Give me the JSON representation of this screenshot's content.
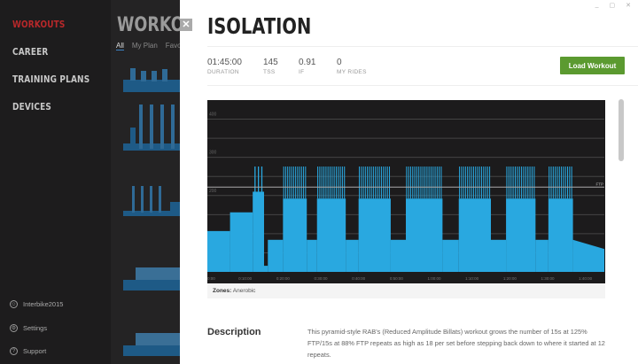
{
  "sidebar": {
    "items": [
      {
        "label": "WORKOUTS",
        "active": true
      },
      {
        "label": "CAREER"
      },
      {
        "label": "TRAINING PLANS"
      },
      {
        "label": "DEVICES"
      }
    ],
    "footer": [
      {
        "icon": "user-icon",
        "label": "Interbike2015"
      },
      {
        "icon": "gear-icon",
        "label": "Settings"
      },
      {
        "icon": "help-icon",
        "label": "Support"
      }
    ]
  },
  "background": {
    "title": "WORKOUTS",
    "tabs": [
      "All",
      "My Plan",
      "Favorites"
    ]
  },
  "modal": {
    "close": "✕",
    "window_controls": [
      "_",
      "▢",
      "✕"
    ],
    "title": "ISOLATION",
    "stats": [
      {
        "value": "01:45:00",
        "label": "DURATION"
      },
      {
        "value": "145",
        "label": "TSS"
      },
      {
        "value": "0.91",
        "label": "IF"
      },
      {
        "value": "0",
        "label": "MY RIDES"
      }
    ],
    "load_button": "Load Workout",
    "zones_label": "Zones:",
    "zones_value": "Anerobic",
    "description_heading": "Description",
    "description": "This pyramid-style RAB's (Reduced Amplitude Billats) workout grows the number of 15s at 125% FTP/15s at 88% FTP repeats as high as 18 per set before stepping back down to where it started at 12 repeats."
  },
  "colors": {
    "accent": "#b8282a",
    "button": "#5b9a30",
    "bar": "#29a8e0"
  },
  "chart_data": {
    "type": "area",
    "ylim": [
      0,
      450
    ],
    "xlim_minutes": [
      0,
      105
    ],
    "ftp": 222,
    "ftp_label": "FTP",
    "y_ticks": [
      "200",
      "300",
      "400"
    ],
    "x_ticks": [
      "0:00",
      "0:10:00",
      "0:20:00",
      "0:30:00",
      "0:40:00",
      "0:50:00",
      "1:00:00",
      "1:10:00",
      "1:20:00",
      "1:30:00",
      "1:40:00"
    ],
    "segments": [
      {
        "start": 0,
        "end": 6,
        "watts": 107
      },
      {
        "start": 6,
        "end": 12,
        "watts": 156
      },
      {
        "start": 12,
        "end": 15,
        "watts": 210
      },
      {
        "start": 15,
        "end": 16,
        "watts": 16
      },
      {
        "start": 16,
        "end": 20,
        "watts": 84
      },
      {
        "start": 20,
        "end": 26.3,
        "watts": 192,
        "interval_peak": 276,
        "repeats": 12
      },
      {
        "start": 26.3,
        "end": 29,
        "watts": 84
      },
      {
        "start": 29,
        "end": 36.6,
        "watts": 192,
        "interval_peak": 276,
        "repeats": 14
      },
      {
        "start": 36.6,
        "end": 40,
        "watts": 84
      },
      {
        "start": 40,
        "end": 48.5,
        "watts": 192,
        "interval_peak": 276,
        "repeats": 16
      },
      {
        "start": 48.5,
        "end": 52.5,
        "watts": 84
      },
      {
        "start": 52.5,
        "end": 62.2,
        "watts": 192,
        "interval_peak": 276,
        "repeats": 18
      },
      {
        "start": 62.2,
        "end": 66.5,
        "watts": 84
      },
      {
        "start": 66.5,
        "end": 75,
        "watts": 192,
        "interval_peak": 276,
        "repeats": 16
      },
      {
        "start": 75,
        "end": 79,
        "watts": 84
      },
      {
        "start": 79,
        "end": 86.8,
        "watts": 192,
        "interval_peak": 276,
        "repeats": 14
      },
      {
        "start": 86.8,
        "end": 90.2,
        "watts": 84
      },
      {
        "start": 90.2,
        "end": 96.7,
        "watts": 192,
        "interval_peak": 276,
        "repeats": 12
      },
      {
        "start": 96.7,
        "end": 105,
        "watts": 84,
        "watts_end": 60
      }
    ],
    "openers": [
      {
        "time": 12.6,
        "watts": 276
      },
      {
        "time": 13.5,
        "watts": 276
      },
      {
        "time": 14.4,
        "watts": 276
      }
    ]
  }
}
